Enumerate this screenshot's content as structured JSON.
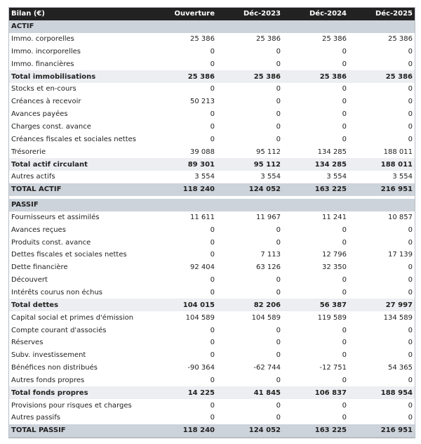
{
  "header": {
    "title": "Bilan (€)",
    "columns": [
      "Ouverture",
      "Déc-2023",
      "Déc-2024",
      "Déc-2025"
    ]
  },
  "rows": [
    {
      "type": "section",
      "label": "ACTIF",
      "values": []
    },
    {
      "type": "normal",
      "label": "Immo. corporelles",
      "values": [
        "25 386",
        "25 386",
        "25 386",
        "25 386"
      ]
    },
    {
      "type": "normal",
      "label": "Immo. incorporelles",
      "values": [
        "0",
        "0",
        "0",
        "0"
      ]
    },
    {
      "type": "normal",
      "label": "Immo. financières",
      "values": [
        "0",
        "0",
        "0",
        "0"
      ]
    },
    {
      "type": "subtotal",
      "label": "Total immobilisations",
      "values": [
        "25 386",
        "25 386",
        "25 386",
        "25 386"
      ]
    },
    {
      "type": "normal",
      "label": "Stocks et en-cours",
      "values": [
        "0",
        "0",
        "0",
        "0"
      ]
    },
    {
      "type": "normal",
      "label": "Créances à recevoir",
      "values": [
        "50 213",
        "0",
        "0",
        "0"
      ]
    },
    {
      "type": "normal",
      "label": "Avances payées",
      "values": [
        "0",
        "0",
        "0",
        "0"
      ]
    },
    {
      "type": "normal",
      "label": "Charges const. avance",
      "values": [
        "0",
        "0",
        "0",
        "0"
      ]
    },
    {
      "type": "normal",
      "label": "Créances fiscales et sociales nettes",
      "values": [
        "0",
        "0",
        "0",
        "0"
      ]
    },
    {
      "type": "normal",
      "label": "Trésorerie",
      "values": [
        "39 088",
        "95 112",
        "134 285",
        "188 011"
      ]
    },
    {
      "type": "subtotal",
      "label": "Total actif circulant",
      "values": [
        "89 301",
        "95 112",
        "134 285",
        "188 011"
      ]
    },
    {
      "type": "normal",
      "label": "Autres actifs",
      "values": [
        "3 554",
        "3 554",
        "3 554",
        "3 554"
      ]
    },
    {
      "type": "total",
      "label": "TOTAL ACTIF",
      "values": [
        "118 240",
        "124 052",
        "163 225",
        "216 951"
      ]
    },
    {
      "type": "gap",
      "label": "",
      "values": []
    },
    {
      "type": "section",
      "label": "PASSIF",
      "values": []
    },
    {
      "type": "normal",
      "label": "Fournisseurs et assimilés",
      "values": [
        "11 611",
        "11 967",
        "11 241",
        "10 857"
      ]
    },
    {
      "type": "normal",
      "label": "Avances reçues",
      "values": [
        "0",
        "0",
        "0",
        "0"
      ]
    },
    {
      "type": "normal",
      "label": "Produits const. avance",
      "values": [
        "0",
        "0",
        "0",
        "0"
      ]
    },
    {
      "type": "normal",
      "label": "Dettes fiscales et sociales nettes",
      "values": [
        "0",
        "7 113",
        "12 796",
        "17 139"
      ]
    },
    {
      "type": "normal",
      "label": "Dette financière",
      "values": [
        "92 404",
        "63 126",
        "32 350",
        "0"
      ]
    },
    {
      "type": "normal",
      "label": "Découvert",
      "values": [
        "0",
        "0",
        "0",
        "0"
      ]
    },
    {
      "type": "normal",
      "label": "Intérêts courus non échus",
      "values": [
        "0",
        "0",
        "0",
        "0"
      ]
    },
    {
      "type": "subtotal",
      "label": "Total dettes",
      "values": [
        "104 015",
        "82 206",
        "56 387",
        "27 997"
      ]
    },
    {
      "type": "normal",
      "label": "Capital social et primes d'émission",
      "values": [
        "104 589",
        "104 589",
        "119 589",
        "134 589"
      ]
    },
    {
      "type": "normal",
      "label": "Compte courant d'associés",
      "values": [
        "0",
        "0",
        "0",
        "0"
      ]
    },
    {
      "type": "normal",
      "label": "Réserves",
      "values": [
        "0",
        "0",
        "0",
        "0"
      ]
    },
    {
      "type": "normal",
      "label": "Subv. investissement",
      "values": [
        "0",
        "0",
        "0",
        "0"
      ]
    },
    {
      "type": "normal",
      "label": "Bénéfices non distribués",
      "values": [
        "-90 364",
        "-62 744",
        "-12 751",
        "54 365"
      ]
    },
    {
      "type": "normal",
      "label": "Autres fonds propres",
      "values": [
        "0",
        "0",
        "0",
        "0"
      ]
    },
    {
      "type": "subtotal",
      "label": "Total fonds propres",
      "values": [
        "14 225",
        "41 845",
        "106 837",
        "188 954"
      ]
    },
    {
      "type": "normal",
      "label": "Provisions pour risques et charges",
      "values": [
        "0",
        "0",
        "0",
        "0"
      ]
    },
    {
      "type": "normal",
      "label": "Autres passifs",
      "values": [
        "0",
        "0",
        "0",
        "0"
      ]
    },
    {
      "type": "total",
      "label": "TOTAL PASSIF",
      "values": [
        "118 240",
        "124 052",
        "163 225",
        "216 951"
      ]
    }
  ]
}
